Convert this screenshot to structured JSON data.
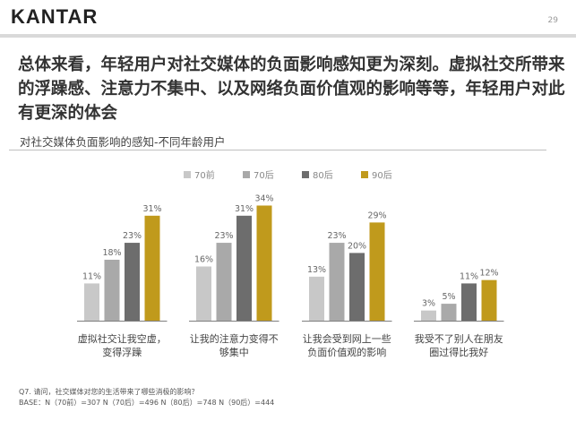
{
  "brand": "KANTAR",
  "page_number": "29",
  "headline": "总体来看，年轻用户对社交媒体的负面影响感知更为深刻。虚拟社交所带来的浮躁感、注意力不集中、以及网络负面价值观的影响等等，年轻用户对此有更深的体会",
  "footnote": {
    "question": "Q7. 请问，社交媒体对您的生活带来了哪些消极的影响？",
    "base": "BASE：N（70前）=307   N（70后）=496   N（80后）=748   N（90后）=444"
  },
  "colors": {
    "70前": "#c8c8c8",
    "70后": "#a9a9a9",
    "80后": "#6d6d6d",
    "90后": "#c09a1c"
  },
  "chart_data": {
    "type": "bar",
    "title": "对社交媒体负面影响的感知-不同年龄用户",
    "categories": [
      [
        "虚拟社交让我空虚，",
        "变得浮躁"
      ],
      [
        "让我的注意力变得不",
        "够集中"
      ],
      [
        "让我会受到网上一些",
        "负面价值观的影响"
      ],
      [
        "我受不了别人在朋友",
        "圈过得比我好"
      ]
    ],
    "series": [
      {
        "name": "70前",
        "values": [
          11,
          16,
          13,
          3
        ]
      },
      {
        "name": "70后",
        "values": [
          18,
          23,
          23,
          5
        ]
      },
      {
        "name": "80后",
        "values": [
          23,
          31,
          20,
          11
        ]
      },
      {
        "name": "90后",
        "values": [
          31,
          34,
          29,
          12
        ]
      }
    ],
    "value_suffix": "%",
    "ylim": [
      0,
      34
    ],
    "legend_position": "top",
    "grid": false
  }
}
